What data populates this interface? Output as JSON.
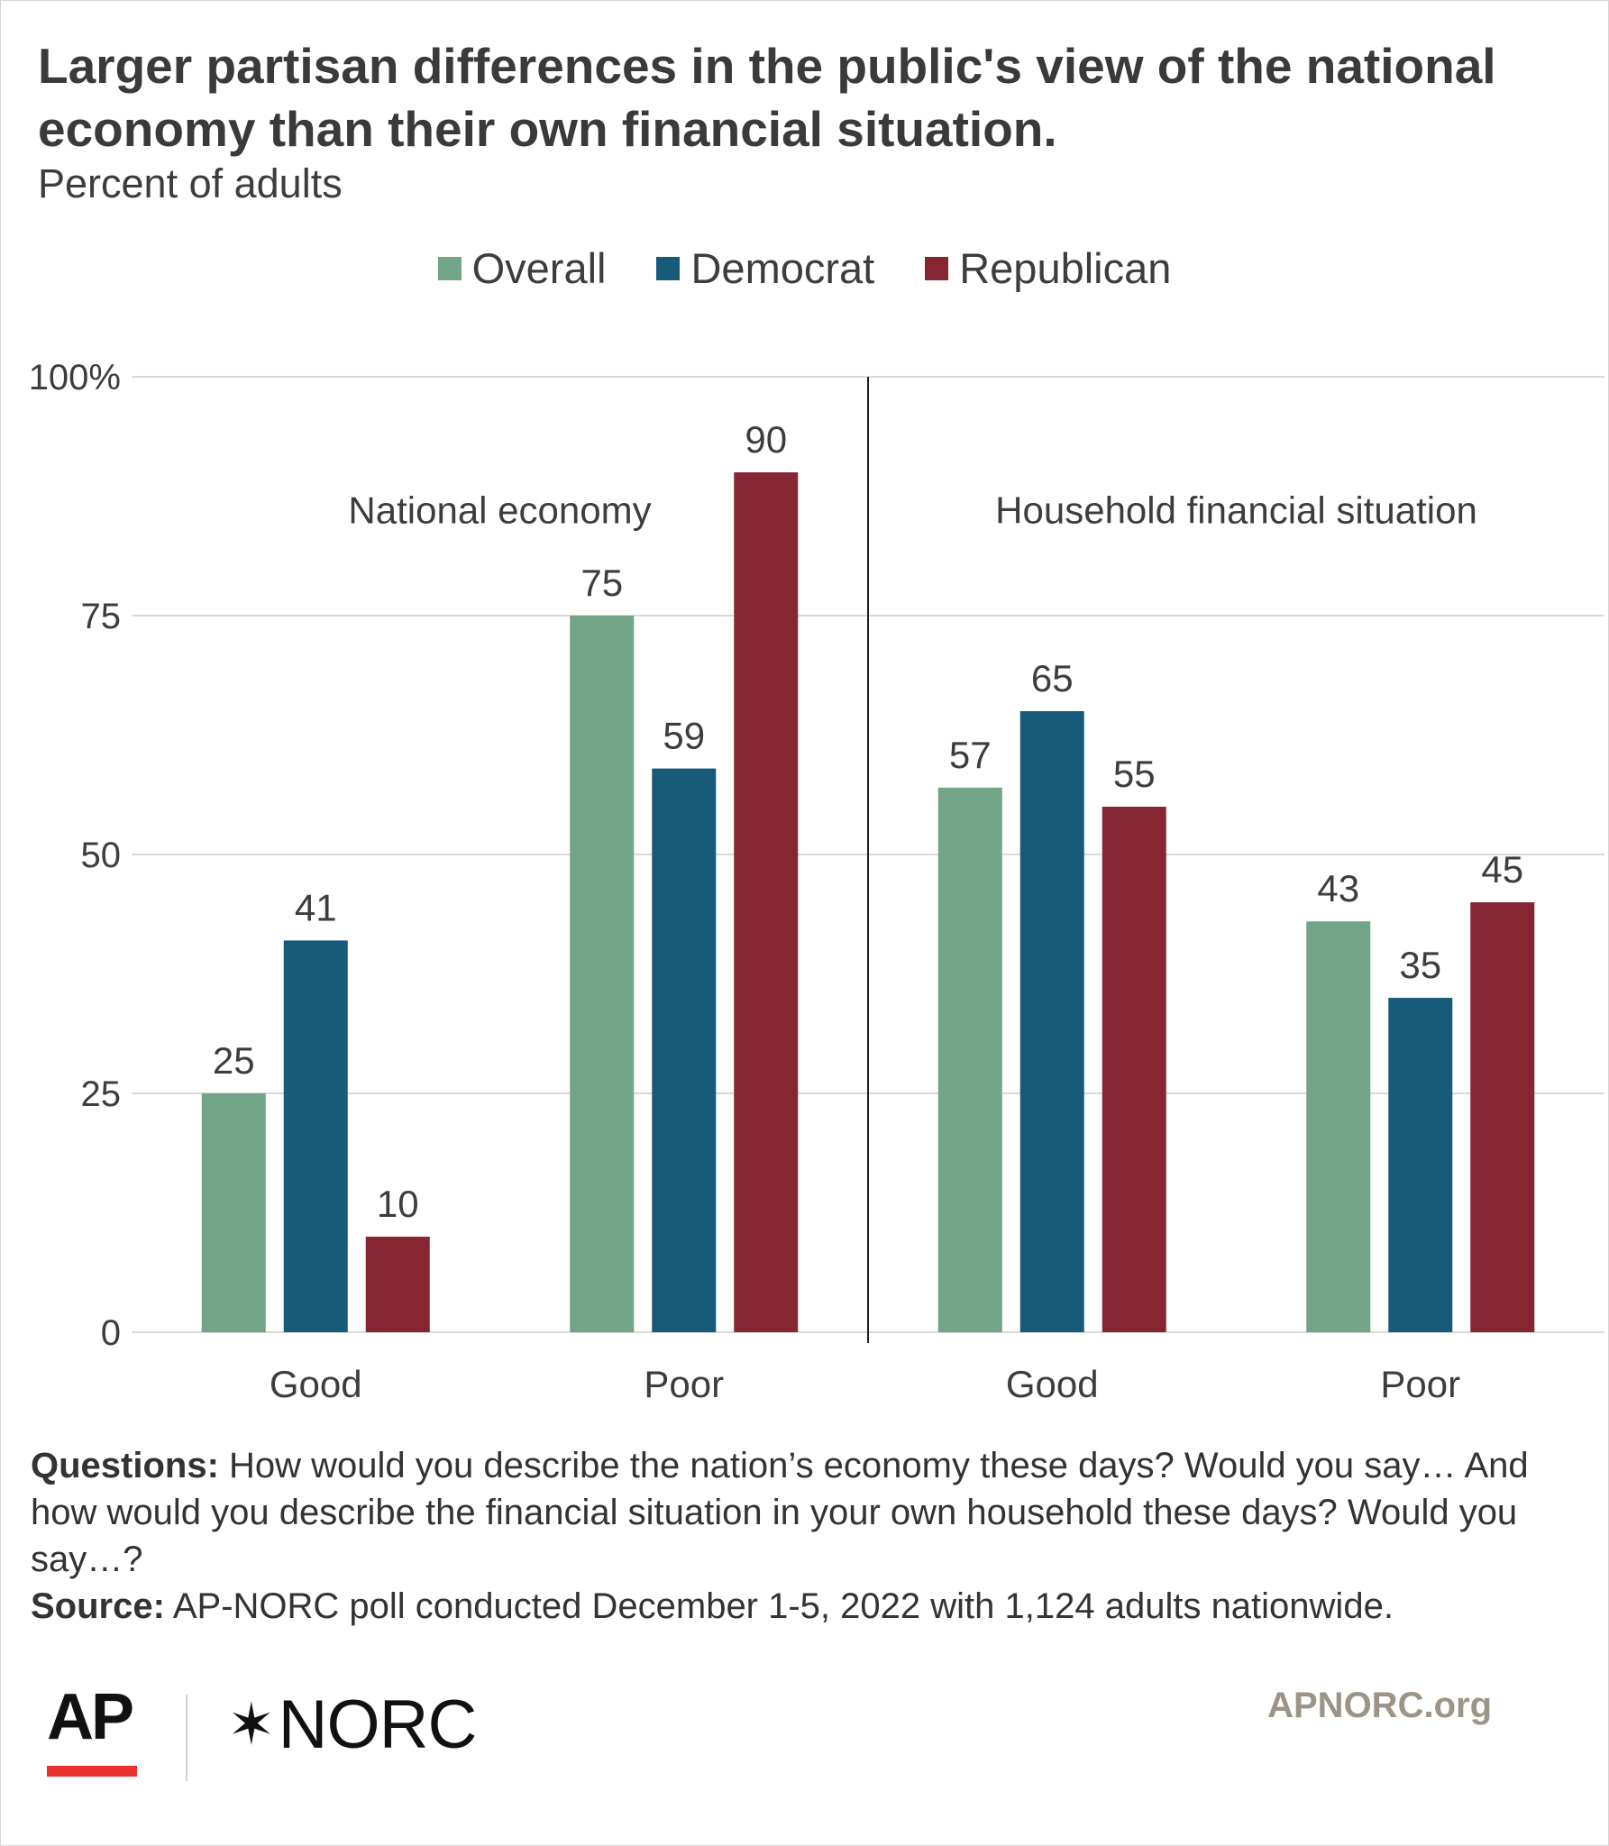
{
  "header": {
    "title": "Larger partisan differences in the public's view of the national economy than their own financial situation.",
    "subtitle": "Percent of adults"
  },
  "chart_data": {
    "type": "bar",
    "panels": [
      {
        "label": "National economy",
        "categories": [
          "Good",
          "Poor"
        ]
      },
      {
        "label": "Household financial situation",
        "categories": [
          "Good",
          "Poor"
        ]
      }
    ],
    "categories": [
      "Good",
      "Poor",
      "Good",
      "Poor"
    ],
    "series": [
      {
        "name": "Overall",
        "color": "#72a487",
        "values": [
          25,
          75,
          57,
          43
        ]
      },
      {
        "name": "Democrat",
        "color": "#175a7a",
        "values": [
          41,
          59,
          65,
          35
        ]
      },
      {
        "name": "Republican",
        "color": "#872633",
        "values": [
          10,
          90,
          55,
          45
        ]
      }
    ],
    "ylim": [
      0,
      100
    ],
    "yticks": [
      0,
      25,
      50,
      75,
      100
    ],
    "ytick_labels": [
      "0",
      "25",
      "50",
      "75",
      "100%"
    ],
    "grid": true,
    "legend": "top-center"
  },
  "notes": {
    "questions_label": "Questions:",
    "questions_text": "How would you describe the nation’s economy these days? Would you say… And how would you describe the financial situation in your own household these days? Would you say…?",
    "source_label": "Source:",
    "source_text": "AP-NORC poll conducted December 1-5, 2022 with 1,124 adults nationwide."
  },
  "footer": {
    "ap_logo": "AP",
    "norc_logo": "NORC",
    "norc_icon": "star-icon",
    "site": "APNORC.org",
    "ap_bar_color": "#e8312e"
  }
}
